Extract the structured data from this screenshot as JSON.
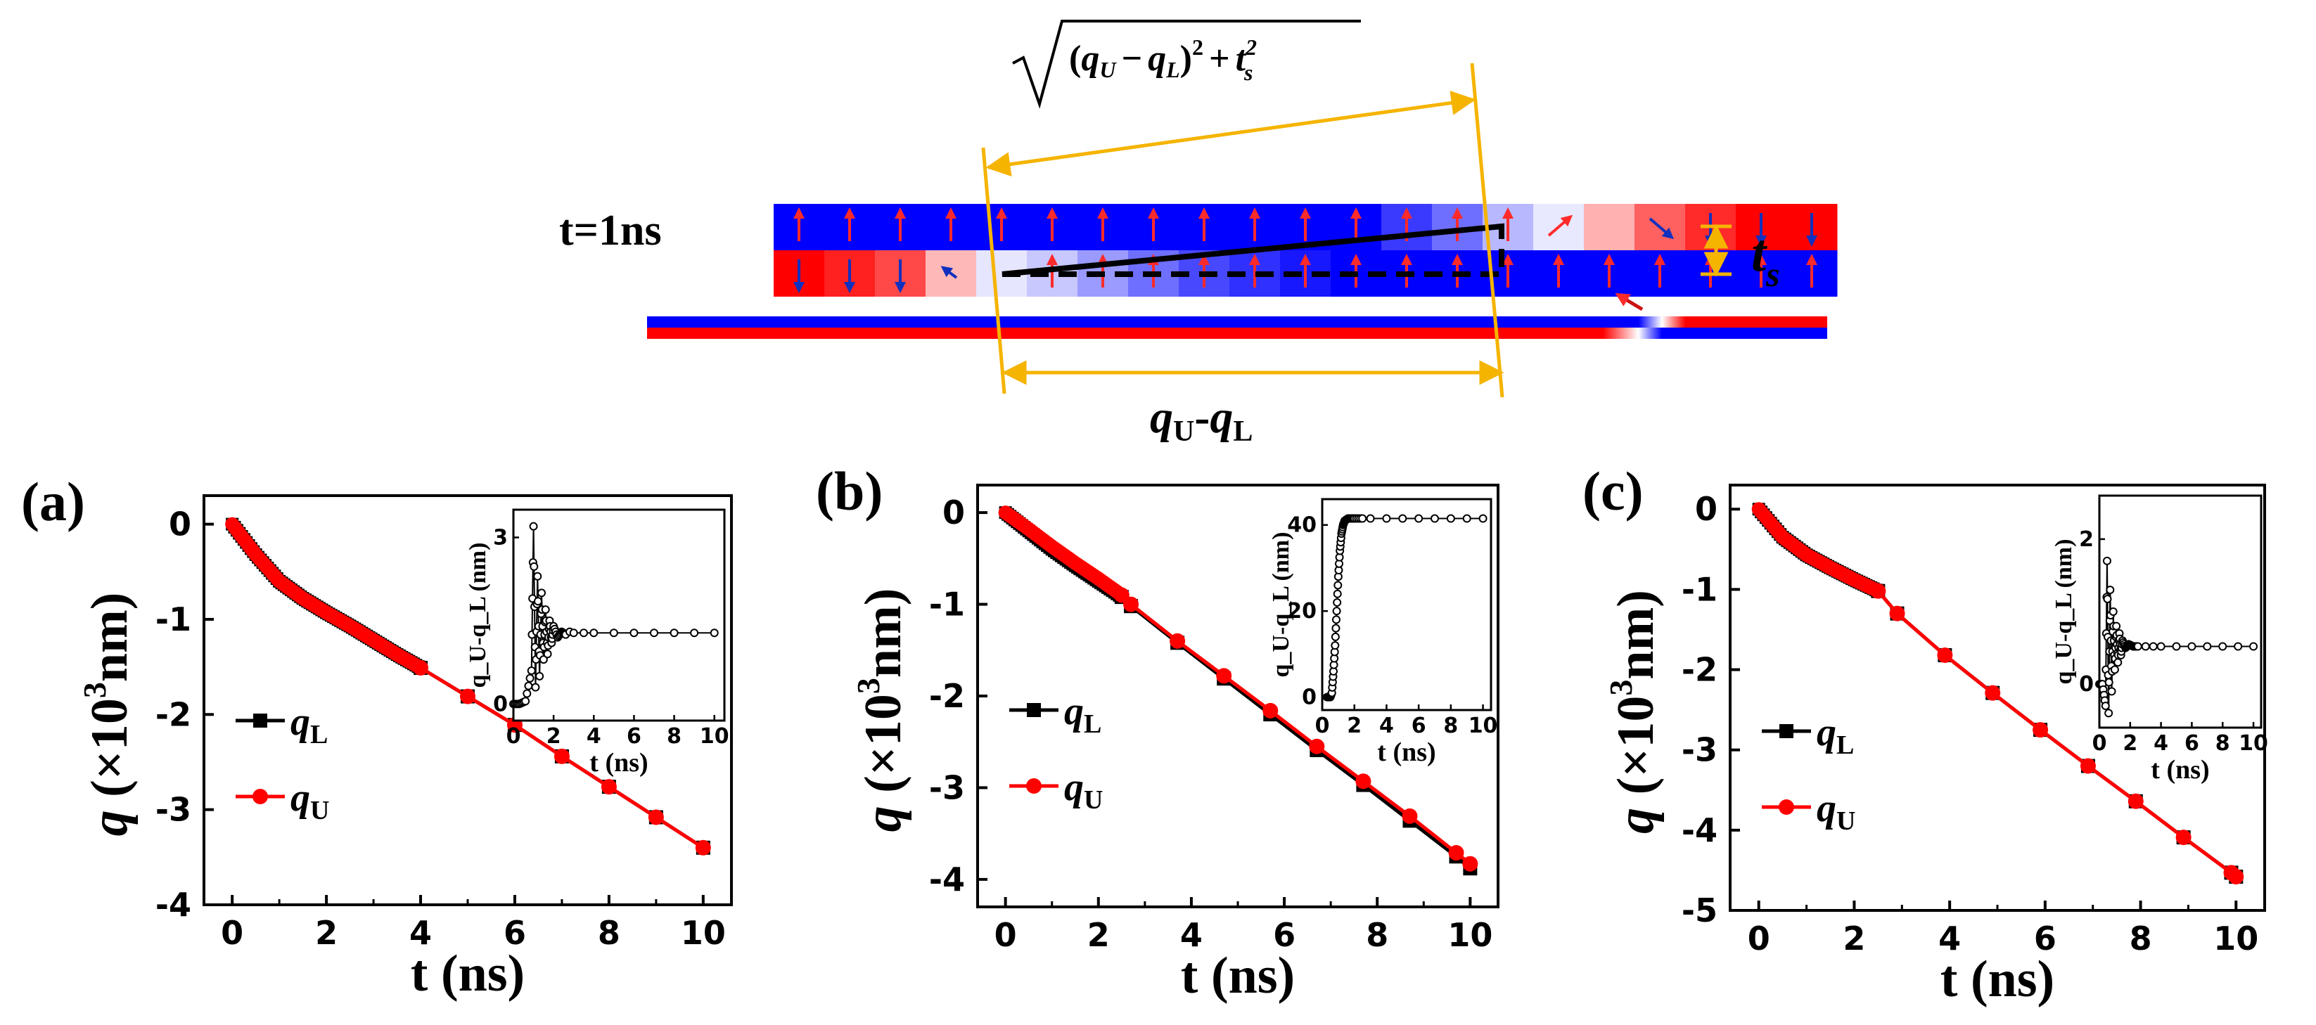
{
  "top_diagram": {
    "time_label": "t=1ns",
    "sqrt_expression": "(q_U − q_L)² + t_s²",
    "sqrt_q": "q",
    "sqrt_U": "U",
    "sqrt_L": "L",
    "sqrt_open": "(",
    "sqrt_minus": "−",
    "sqrt_close_sq": ")",
    "sqrt_two": "2",
    "sqrt_plus": "+",
    "sqrt_t": "t",
    "sqrt_s": "s",
    "diff_q": "q",
    "diff_U": "U",
    "diff_dash": "-",
    "diff_L": "L",
    "ts_t": "t",
    "ts_s": "s",
    "upper_layer_arrows": [
      "up",
      "up",
      "up",
      "up",
      "up",
      "up",
      "up",
      "up",
      "up",
      "up",
      "up",
      "up",
      "up",
      "up",
      "up",
      "ne",
      "faint",
      "se",
      "down",
      "down",
      "down"
    ],
    "lower_layer_arrows": [
      "down",
      "down",
      "down",
      "nw-small",
      "faint",
      "up",
      "up",
      "up",
      "up",
      "up",
      "up",
      "up",
      "up",
      "up",
      "up",
      "up",
      "up",
      "up",
      "up",
      "up",
      "up"
    ],
    "colors": {
      "blue": "#0000ff",
      "red": "#ff0000",
      "guide": "#f5b400",
      "arrow_up": "#ff2a2a",
      "arrow_down": "#1030c0"
    }
  },
  "chart_data": [
    {
      "panel": "(a)",
      "type": "line",
      "title": "",
      "xlabel": "t (ns)",
      "ylabel_q": "q",
      "ylabel_unit": "(×10",
      "ylabel_exp": "3",
      "ylabel_tail": "nm)",
      "xlim": [
        -0.6,
        10.6
      ],
      "ylim": [
        -4,
        0.3
      ],
      "xticks": [
        0,
        2,
        4,
        6,
        8,
        10
      ],
      "yticks": [
        0,
        -1,
        -2,
        -3,
        -4
      ],
      "legend": [
        {
          "name": "q",
          "sub": "L",
          "color": "#000000",
          "marker": "square"
        },
        {
          "name": "q",
          "sub": "U",
          "color": "#ff0000",
          "marker": "circle"
        }
      ],
      "series": [
        {
          "name": "qL",
          "color": "#000000",
          "marker": "square",
          "x": [
            0,
            0.5,
            1,
            1.5,
            2,
            2.5,
            3,
            3.5,
            4,
            5,
            6,
            7,
            8,
            9,
            10
          ],
          "y": [
            0,
            -0.32,
            -0.6,
            -0.78,
            -0.93,
            -1.07,
            -1.22,
            -1.37,
            -1.51,
            -1.81,
            -2.11,
            -2.44,
            -2.76,
            -3.08,
            -3.4
          ]
        },
        {
          "name": "qU",
          "color": "#ff0000",
          "marker": "circle",
          "x": [
            0,
            0.5,
            1,
            1.5,
            2,
            2.5,
            3,
            3.5,
            4,
            5,
            6,
            7,
            8,
            9,
            10
          ],
          "y": [
            0,
            -0.32,
            -0.6,
            -0.78,
            -0.93,
            -1.07,
            -1.22,
            -1.37,
            -1.51,
            -1.81,
            -2.11,
            -2.44,
            -2.76,
            -3.08,
            -3.4
          ]
        }
      ],
      "dense_until": 4,
      "inset": {
        "type": "scatter",
        "xlabel": "t (ns)",
        "ylabel": "q_U-q_L (nm)",
        "xlim": [
          0,
          10.5
        ],
        "ylim": [
          -0.3,
          3.5
        ],
        "xticks": [
          0,
          2,
          4,
          6,
          8,
          10
        ],
        "yticks": [
          0,
          3
        ],
        "x": [
          0,
          0.3,
          0.6,
          0.9,
          1.0,
          1.1,
          1.2,
          1.3,
          1.4,
          1.5,
          1.6,
          1.7,
          1.8,
          1.9,
          2.0,
          2.2,
          2.4,
          2.6,
          2.8,
          3.0,
          3.5,
          4,
          5,
          6,
          7,
          8,
          9,
          10
        ],
        "y": [
          0,
          0,
          0.05,
          0.6,
          3.2,
          0.3,
          2.3,
          0.5,
          2.0,
          0.8,
          1.7,
          0.9,
          1.5,
          1.1,
          1.4,
          1.2,
          1.3,
          1.25,
          1.3,
          1.28,
          1.28,
          1.28,
          1.28,
          1.28,
          1.28,
          1.28,
          1.28,
          1.28
        ]
      }
    },
    {
      "panel": "(b)",
      "type": "line",
      "title": "",
      "xlabel": "t (ns)",
      "ylabel_q": "q",
      "ylabel_unit": "(×10",
      "ylabel_exp": "3",
      "ylabel_tail": "nm)",
      "xlim": [
        -0.6,
        10.6
      ],
      "ylim": [
        -4.3,
        0.3
      ],
      "xticks": [
        0,
        2,
        4,
        6,
        8,
        10
      ],
      "yticks": [
        0,
        -1,
        -2,
        -3,
        -4
      ],
      "legend": [
        {
          "name": "q",
          "sub": "L",
          "color": "#000000",
          "marker": "square"
        },
        {
          "name": "q",
          "sub": "U",
          "color": "#ff0000",
          "marker": "circle"
        }
      ],
      "series": [
        {
          "name": "qL",
          "color": "#000000",
          "marker": "square",
          "x": [
            0,
            0.5,
            1,
            1.5,
            2,
            2.5,
            2.7,
            3.7,
            4.7,
            5.7,
            6.7,
            7.7,
            8.7,
            9.7,
            10
          ],
          "y": [
            0,
            -0.2,
            -0.4,
            -0.58,
            -0.75,
            -0.92,
            -1.02,
            -1.42,
            -1.81,
            -2.2,
            -2.59,
            -2.97,
            -3.36,
            -3.75,
            -3.88
          ]
        },
        {
          "name": "qU",
          "color": "#ff0000",
          "marker": "circle",
          "x": [
            0,
            0.5,
            1,
            1.5,
            2,
            2.5,
            2.7,
            3.7,
            4.7,
            5.7,
            6.7,
            7.7,
            8.7,
            9.7,
            10
          ],
          "y": [
            0,
            -0.18,
            -0.37,
            -0.55,
            -0.72,
            -0.9,
            -1.0,
            -1.4,
            -1.78,
            -2.16,
            -2.55,
            -2.93,
            -3.31,
            -3.71,
            -3.83
          ]
        }
      ],
      "dense_until": 2.5,
      "inset": {
        "type": "scatter",
        "xlabel": "t (ns)",
        "ylabel": "q_U-q_L (nm)",
        "xlim": [
          0,
          10.5
        ],
        "ylim": [
          -3,
          46
        ],
        "xticks": [
          0,
          2,
          4,
          6,
          8,
          10
        ],
        "yticks": [
          0,
          20,
          40
        ],
        "x": [
          0.3,
          0.5,
          0.6,
          0.7,
          0.8,
          0.9,
          1.0,
          1.1,
          1.2,
          1.3,
          1.4,
          1.6,
          1.8,
          2.0,
          2.5,
          3,
          4,
          5,
          6,
          7,
          8,
          9,
          10
        ],
        "y": [
          0,
          0,
          1,
          6,
          12,
          20,
          28,
          34,
          38,
          40,
          41,
          41.5,
          41.5,
          41.5,
          41.5,
          41.5,
          41.5,
          41.5,
          41.5,
          41.5,
          41.5,
          41.5,
          41.5
        ]
      }
    },
    {
      "panel": "(c)",
      "type": "line",
      "title": "",
      "xlabel": "t (ns)",
      "ylabel_q": "q",
      "ylabel_unit": "(×10",
      "ylabel_exp": "3",
      "ylabel_tail": "nm)",
      "xlim": [
        -0.6,
        10.6
      ],
      "ylim": [
        -5,
        0.3
      ],
      "xticks": [
        0,
        2,
        4,
        6,
        8,
        10
      ],
      "yticks": [
        0,
        -1,
        -2,
        -3,
        -4,
        -5
      ],
      "legend": [
        {
          "name": "q",
          "sub": "L",
          "color": "#000000",
          "marker": "square"
        },
        {
          "name": "q",
          "sub": "U",
          "color": "#ff0000",
          "marker": "circle"
        }
      ],
      "series": [
        {
          "name": "qL",
          "color": "#000000",
          "marker": "square",
          "x": [
            0,
            0.5,
            1,
            1.5,
            2,
            2.5,
            2.9,
            3.9,
            4.9,
            5.9,
            6.9,
            7.9,
            8.9,
            9.9,
            10
          ],
          "y": [
            0,
            -0.35,
            -0.57,
            -0.73,
            -0.88,
            -1.02,
            -1.3,
            -1.82,
            -2.29,
            -2.75,
            -3.2,
            -3.64,
            -4.09,
            -4.53,
            -4.58
          ]
        },
        {
          "name": "qU",
          "color": "#ff0000",
          "marker": "circle",
          "x": [
            0,
            0.5,
            1,
            1.5,
            2,
            2.5,
            2.9,
            3.9,
            4.9,
            5.9,
            6.9,
            7.9,
            8.9,
            9.9,
            10
          ],
          "y": [
            0,
            -0.35,
            -0.57,
            -0.73,
            -0.88,
            -1.02,
            -1.3,
            -1.82,
            -2.29,
            -2.75,
            -3.2,
            -3.64,
            -4.09,
            -4.53,
            -4.58
          ]
        }
      ],
      "dense_until": 2.2,
      "inset": {
        "type": "scatter",
        "xlabel": "t (ns)",
        "ylabel": "q_U-q_L (nm)",
        "xlim": [
          0,
          10.5
        ],
        "ylim": [
          -0.6,
          2.6
        ],
        "xticks": [
          0,
          2,
          4,
          6,
          8,
          10
        ],
        "yticks": [
          0,
          2
        ],
        "x": [
          0,
          0.2,
          0.4,
          0.5,
          0.6,
          0.7,
          0.8,
          0.9,
          1.0,
          1.1,
          1.2,
          1.3,
          1.4,
          1.5,
          1.7,
          1.9,
          2.2,
          2.5,
          3,
          3.5,
          4,
          5,
          6,
          7,
          8,
          9,
          10
        ],
        "y": [
          0,
          0,
          -0.3,
          1.7,
          -0.4,
          1.3,
          -0.1,
          1.0,
          0.2,
          0.8,
          0.3,
          0.7,
          0.4,
          0.6,
          0.5,
          0.55,
          0.52,
          0.52,
          0.52,
          0.52,
          0.52,
          0.52,
          0.52,
          0.52,
          0.52,
          0.52,
          0.52
        ]
      }
    }
  ]
}
